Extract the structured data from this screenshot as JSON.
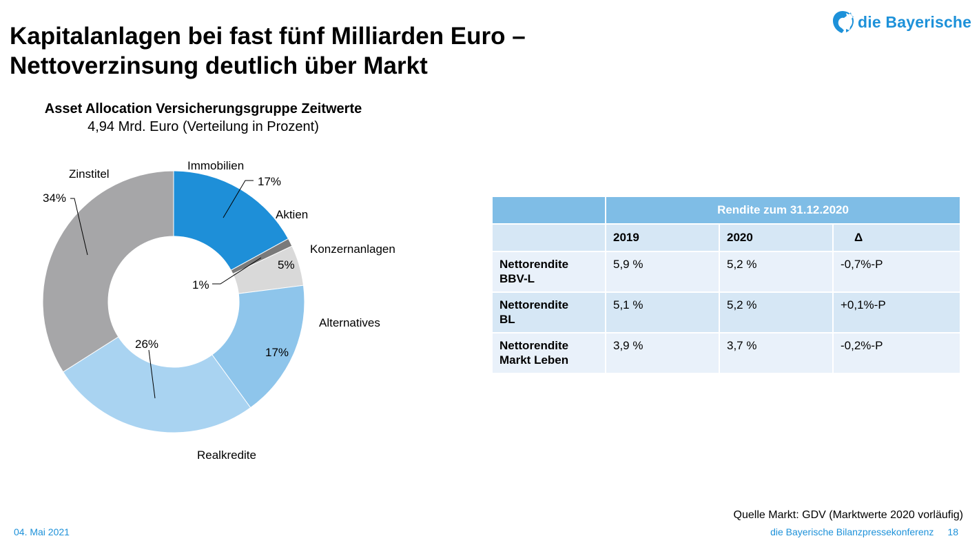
{
  "slide": {
    "title_line1": "Kapitalanlagen bei fast fünf Milliarden Euro –",
    "title_line2": "Nettoverzinsung deutlich über Markt",
    "logo_text": "die Bayerische",
    "source": "Quelle Markt: GDV (Marktwerte 2020 vorläufig)",
    "date": "04. Mai 2021",
    "footer_event": "die Bayerische Bilanzpressekonferenz",
    "page_number": "18"
  },
  "colors": {
    "brand": "#1d91d9",
    "immobilien": "#1e8fd8",
    "aktien": "#7a7a7a",
    "konzernanlagen": "#d9d9d9",
    "alternatives": "#8ec5eb",
    "realkredite": "#a9d3f1",
    "zinstitel": "#a6a6a8",
    "table_header": "#7fbde6",
    "table_row_light": "#e9f1fa",
    "table_row_dark": "#d6e7f5"
  },
  "chart_data": {
    "type": "pie",
    "subtype": "donut",
    "title": "Asset Allocation Versicherungsgruppe Zeitwerte",
    "subtitle": "4,94 Mrd. Euro (Verteilung in Prozent)",
    "slices": [
      {
        "label": "Immobilien",
        "value": 17,
        "value_label": "17%"
      },
      {
        "label": "Aktien",
        "value": 1,
        "value_label": "1%"
      },
      {
        "label": "Konzernanlagen",
        "value": 5,
        "value_label": "5%"
      },
      {
        "label": "Alternatives",
        "value": 17,
        "value_label": "17%"
      },
      {
        "label": "Realkredite",
        "value": 26,
        "value_label": "26%"
      },
      {
        "label": "Zinstitel",
        "value": 34,
        "value_label": "34%"
      }
    ]
  },
  "table": {
    "header": "Rendite zum 31.12.2020",
    "columns": [
      "2019",
      "2020",
      "Δ"
    ],
    "rows": [
      {
        "label_line1": "Nettorendite",
        "label_line2": "BBV-L",
        "v2019": "5,9 %",
        "v2020": "5,2 %",
        "delta": "-0,7%-P"
      },
      {
        "label_line1": "Nettorendite",
        "label_line2": "BL",
        "v2019": "5,1 %",
        "v2020": "5,2 %",
        "delta": "+0,1%-P"
      },
      {
        "label_line1": "Nettorendite",
        "label_line2": "Markt Leben",
        "v2019": "3,9 %",
        "v2020": "3,7 %",
        "delta": "-0,2%-P"
      }
    ]
  }
}
